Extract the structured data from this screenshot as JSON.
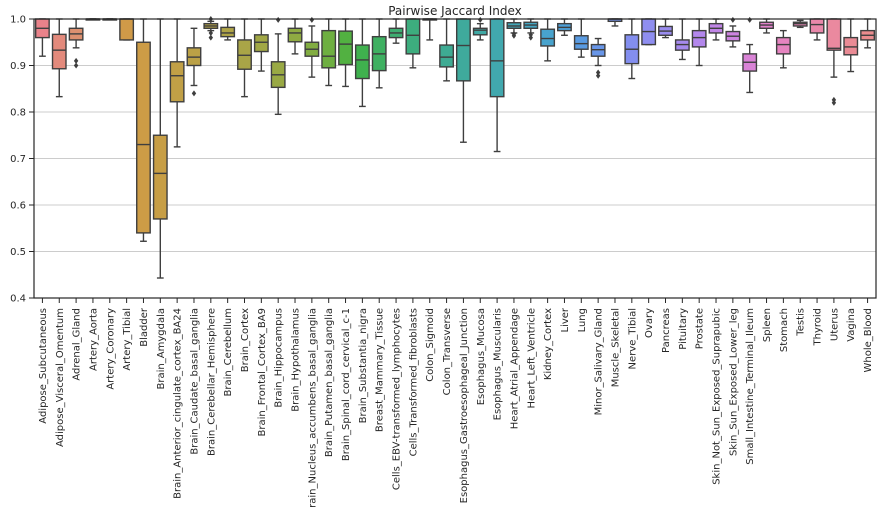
{
  "chart_data": {
    "type": "box",
    "title": "Pairwise Jaccard Index",
    "xlabel": "",
    "ylabel": "",
    "ylim": [
      0.4,
      1.0
    ],
    "yticks": [
      0.4,
      0.5,
      0.6,
      0.7,
      0.8,
      0.9,
      1.0
    ],
    "grid": "horizontal",
    "categories": [
      {
        "name": "Adipose_Subcutaneous",
        "color": "#e9828a",
        "whislo": 0.92,
        "q1": 0.96,
        "med": 0.98,
        "q3": 1.0,
        "whishi": 1.0,
        "fliers": []
      },
      {
        "name": "Adipose_Visceral_Omentum",
        "color": "#e38a7c",
        "whislo": 0.833,
        "q1": 0.893,
        "med": 0.933,
        "q3": 0.967,
        "whishi": 1.0,
        "fliers": []
      },
      {
        "name": "Adrenal_Gland",
        "color": "#dc9070",
        "whislo": 0.938,
        "q1": 0.955,
        "med": 0.968,
        "q3": 0.98,
        "whishi": 1.0,
        "fliers": [
          0.91,
          0.9
        ]
      },
      {
        "name": "Artery_Aorta",
        "color": "#d79460",
        "whislo": 1.0,
        "q1": 1.0,
        "med": 1.0,
        "q3": 1.0,
        "whishi": 1.0,
        "fliers": []
      },
      {
        "name": "Artery_Coronary",
        "color": "#d39850",
        "whislo": 1.0,
        "q1": 1.0,
        "med": 1.0,
        "q3": 1.0,
        "whishi": 1.0,
        "fliers": []
      },
      {
        "name": "Artery_Tibial",
        "color": "#d09a48",
        "whislo": 0.955,
        "q1": 0.955,
        "med": 1.0,
        "q3": 1.0,
        "whishi": 1.0,
        "fliers": []
      },
      {
        "name": "Bladder",
        "color": "#cd9c46",
        "whislo": 0.522,
        "q1": 0.54,
        "med": 0.73,
        "q3": 0.95,
        "whishi": 1.0,
        "fliers": []
      },
      {
        "name": "Brain_Amygdala",
        "color": "#c79e46",
        "whislo": 0.443,
        "q1": 0.57,
        "med": 0.668,
        "q3": 0.75,
        "whishi": 1.0,
        "fliers": []
      },
      {
        "name": "Brain_Anterior_cingulate_cortex_BA24",
        "color": "#c1a046",
        "whislo": 0.725,
        "q1": 0.822,
        "med": 0.878,
        "q3": 0.908,
        "whishi": 1.0,
        "fliers": []
      },
      {
        "name": "Brain_Caudate_basal_ganglia",
        "color": "#bba146",
        "whislo": 0.857,
        "q1": 0.9,
        "med": 0.918,
        "q3": 0.938,
        "whishi": 0.98,
        "fliers": [
          0.84
        ]
      },
      {
        "name": "Brain_Cerebellar_Hemisphere",
        "color": "#b5a346",
        "whislo": 0.975,
        "q1": 0.98,
        "med": 0.985,
        "q3": 0.99,
        "whishi": 0.995,
        "fliers": [
          0.97,
          0.96,
          1.0
        ]
      },
      {
        "name": "Brain_Cerebellum",
        "color": "#afa447",
        "whislo": 0.955,
        "q1": 0.962,
        "med": 0.97,
        "q3": 0.982,
        "whishi": 1.0,
        "fliers": []
      },
      {
        "name": "Brain_Cortex",
        "color": "#a9a547",
        "whislo": 0.833,
        "q1": 0.892,
        "med": 0.922,
        "q3": 0.955,
        "whishi": 1.0,
        "fliers": []
      },
      {
        "name": "Brain_Frontal_Cortex_BA9",
        "color": "#a1a745",
        "whislo": 0.888,
        "q1": 0.93,
        "med": 0.95,
        "q3": 0.966,
        "whishi": 1.0,
        "fliers": []
      },
      {
        "name": "Brain_Hippocampus",
        "color": "#99a944",
        "whislo": 0.795,
        "q1": 0.853,
        "med": 0.88,
        "q3": 0.908,
        "whishi": 0.968,
        "fliers": [
          0.998
        ]
      },
      {
        "name": "Brain_Hypothalamus",
        "color": "#8fab42",
        "whislo": 0.925,
        "q1": 0.951,
        "med": 0.97,
        "q3": 0.98,
        "whishi": 1.0,
        "fliers": []
      },
      {
        "name": "Brain_Nucleus_accumbens_basal_ganglia",
        "color": "#82ad42",
        "whislo": 0.875,
        "q1": 0.92,
        "med": 0.935,
        "q3": 0.95,
        "whishi": 0.985,
        "fliers": [
          0.998
        ]
      },
      {
        "name": "Brain_Putamen_basal_ganglia",
        "color": "#6eaf41",
        "whislo": 0.857,
        "q1": 0.895,
        "med": 0.92,
        "q3": 0.975,
        "whishi": 1.0,
        "fliers": []
      },
      {
        "name": "Brain_Spinal_cord_cervical_c-1",
        "color": "#52b141",
        "whislo": 0.855,
        "q1": 0.902,
        "med": 0.946,
        "q3": 0.974,
        "whishi": 1.0,
        "fliers": []
      },
      {
        "name": "Brain_Substantia_nigra",
        "color": "#3fb14e",
        "whislo": 0.812,
        "q1": 0.872,
        "med": 0.912,
        "q3": 0.944,
        "whishi": 1.0,
        "fliers": []
      },
      {
        "name": "Breast_Mammary_Tissue",
        "color": "#3eb061",
        "whislo": 0.852,
        "q1": 0.889,
        "med": 0.925,
        "q3": 0.962,
        "whishi": 1.0,
        "fliers": []
      },
      {
        "name": "Cells_EBV-transformed_lymphocytes",
        "color": "#3eae71",
        "whislo": 0.948,
        "q1": 0.96,
        "med": 0.97,
        "q3": 0.98,
        "whishi": 1.0,
        "fliers": []
      },
      {
        "name": "Cells_Transformed_fibroblasts",
        "color": "#3dad7e",
        "whislo": 0.895,
        "q1": 0.925,
        "med": 0.965,
        "q3": 1.0,
        "whishi": 1.0,
        "fliers": []
      },
      {
        "name": "Colon_Sigmoid",
        "color": "#3dac89",
        "whislo": 0.955,
        "q1": 1.0,
        "med": 1.0,
        "q3": 1.0,
        "whishi": 1.0,
        "fliers": []
      },
      {
        "name": "Colon_Transverse",
        "color": "#3eab93",
        "whislo": 0.867,
        "q1": 0.897,
        "med": 0.918,
        "q3": 0.944,
        "whishi": 1.0,
        "fliers": []
      },
      {
        "name": "Esophagus_Gastroesophageal_Junction",
        "color": "#3faa9c",
        "whislo": 0.735,
        "q1": 0.867,
        "med": 0.943,
        "q3": 1.0,
        "whishi": 1.0,
        "fliers": []
      },
      {
        "name": "Esophagus_Mucosa",
        "color": "#40a9a5",
        "whislo": 0.955,
        "q1": 0.966,
        "med": 0.976,
        "q3": 0.98,
        "whishi": 0.99,
        "fliers": [
          0.998
        ]
      },
      {
        "name": "Esophagus_Muscularis",
        "color": "#41a8ae",
        "whislo": 0.715,
        "q1": 0.833,
        "med": 0.91,
        "q3": 1.0,
        "whishi": 1.0,
        "fliers": []
      },
      {
        "name": "Heart_Atrial_Appendage",
        "color": "#43a7b8",
        "whislo": 0.97,
        "q1": 0.98,
        "med": 0.985,
        "q3": 0.992,
        "whishi": 1.0,
        "fliers": [
          0.964,
          0.968
        ]
      },
      {
        "name": "Heart_Left_Ventricle",
        "color": "#45a6c2",
        "whislo": 0.97,
        "q1": 0.98,
        "med": 0.987,
        "q3": 0.993,
        "whishi": 1.0,
        "fliers": [
          0.96,
          0.966
        ]
      },
      {
        "name": "Kidney_Cortex",
        "color": "#48a3cd",
        "whislo": 0.91,
        "q1": 0.942,
        "med": 0.958,
        "q3": 0.978,
        "whishi": 1.0,
        "fliers": []
      },
      {
        "name": "Liver",
        "color": "#4ea0d8",
        "whislo": 0.965,
        "q1": 0.975,
        "med": 0.982,
        "q3": 0.99,
        "whishi": 1.0,
        "fliers": []
      },
      {
        "name": "Lung",
        "color": "#5a9be1",
        "whislo": 0.918,
        "q1": 0.935,
        "med": 0.947,
        "q3": 0.964,
        "whishi": 1.0,
        "fliers": []
      },
      {
        "name": "Minor_Salivary_Gland",
        "color": "#6896e8",
        "whislo": 0.9,
        "q1": 0.92,
        "med": 0.934,
        "q3": 0.945,
        "whishi": 0.958,
        "fliers": [
          0.885,
          0.878
        ]
      },
      {
        "name": "Muscle_Skeletal",
        "color": "#7592ec",
        "whislo": 0.985,
        "q1": 0.995,
        "med": 1.0,
        "q3": 1.0,
        "whishi": 1.0,
        "fliers": []
      },
      {
        "name": "Nerve_Tibial",
        "color": "#838eef",
        "whislo": 0.872,
        "q1": 0.904,
        "med": 0.935,
        "q3": 0.966,
        "whishi": 1.0,
        "fliers": []
      },
      {
        "name": "Ovary",
        "color": "#8f8ef0",
        "whislo": 0.945,
        "q1": 0.945,
        "med": 0.973,
        "q3": 1.0,
        "whishi": 1.0,
        "fliers": []
      },
      {
        "name": "Pancreas",
        "color": "#9a8cef",
        "whislo": 0.96,
        "q1": 0.965,
        "med": 0.974,
        "q3": 0.984,
        "whishi": 1.0,
        "fliers": []
      },
      {
        "name": "Pituitary",
        "color": "#a68aee",
        "whislo": 0.913,
        "q1": 0.933,
        "med": 0.945,
        "q3": 0.955,
        "whishi": 1.0,
        "fliers": []
      },
      {
        "name": "Prostate",
        "color": "#b387ec",
        "whislo": 0.9,
        "q1": 0.94,
        "med": 0.96,
        "q3": 0.975,
        "whishi": 1.0,
        "fliers": []
      },
      {
        "name": "Skin_Not_Sun_Exposed_Suprapubic",
        "color": "#c085e6",
        "whislo": 0.955,
        "q1": 0.97,
        "med": 0.98,
        "q3": 0.99,
        "whishi": 1.0,
        "fliers": []
      },
      {
        "name": "Skin_Sun_Exposed_Lower_leg",
        "color": "#cd84df",
        "whislo": 0.94,
        "q1": 0.953,
        "med": 0.963,
        "q3": 0.973,
        "whishi": 0.985,
        "fliers": [
          0.998
        ]
      },
      {
        "name": "Small_Intestine_Terminal_Ileum",
        "color": "#d983d6",
        "whislo": 0.842,
        "q1": 0.888,
        "med": 0.907,
        "q3": 0.925,
        "whishi": 0.945,
        "fliers": [
          0.998
        ]
      },
      {
        "name": "Spleen",
        "color": "#e383cc",
        "whislo": 0.97,
        "q1": 0.98,
        "med": 0.987,
        "q3": 0.993,
        "whishi": 1.0,
        "fliers": []
      },
      {
        "name": "Stomach",
        "color": "#e684c0",
        "whislo": 0.895,
        "q1": 0.925,
        "med": 0.945,
        "q3": 0.96,
        "whishi": 0.975,
        "fliers": []
      },
      {
        "name": "Testis",
        "color": "#e886b5",
        "whislo": 0.982,
        "q1": 0.985,
        "med": 0.99,
        "q3": 0.993,
        "whishi": 0.997,
        "fliers": []
      },
      {
        "name": "Thyroid",
        "color": "#e988aa",
        "whislo": 0.955,
        "q1": 0.97,
        "med": 0.988,
        "q3": 1.0,
        "whishi": 1.0,
        "fliers": []
      },
      {
        "name": "Uterus",
        "color": "#ea899f",
        "whislo": 0.875,
        "q1": 0.933,
        "med": 0.937,
        "q3": 1.0,
        "whishi": 1.0,
        "fliers": [
          0.82,
          0.826
        ]
      },
      {
        "name": "Vagina",
        "color": "#ea8b95",
        "whislo": 0.887,
        "q1": 0.923,
        "med": 0.94,
        "q3": 0.96,
        "whishi": 1.0,
        "fliers": []
      },
      {
        "name": "Whole_Blood",
        "color": "#ea8c8e",
        "whislo": 0.938,
        "q1": 0.955,
        "med": 0.965,
        "q3": 0.975,
        "whishi": 1.0,
        "fliers": []
      }
    ]
  }
}
